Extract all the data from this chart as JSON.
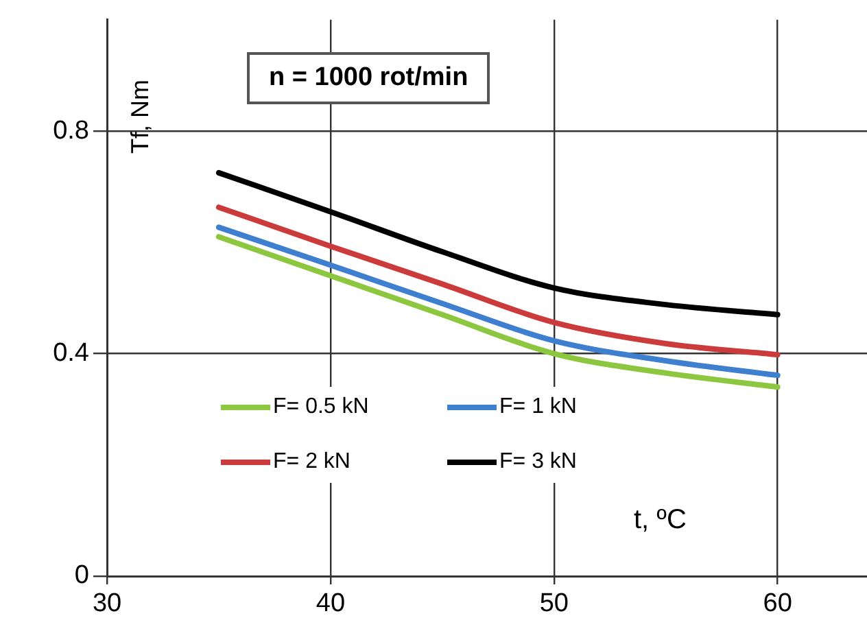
{
  "chart_data": {
    "type": "line",
    "title": "n = 1000 rot/min",
    "xlabel": "t, ºC",
    "ylabel": "Tf, Nm",
    "x": [
      35,
      40,
      45,
      50,
      55,
      60
    ],
    "series": [
      {
        "name": "F= 0.5 kN",
        "color": "#8dc63f",
        "values": [
          0.61,
          0.54,
          0.47,
          0.4,
          0.365,
          0.34
        ]
      },
      {
        "name": "F= 1 kN",
        "color": "#3f7fd0",
        "values": [
          0.627,
          0.559,
          0.49,
          0.423,
          0.387,
          0.361
        ]
      },
      {
        "name": "F= 2 kN",
        "color": "#cc3b3b",
        "values": [
          0.663,
          0.593,
          0.525,
          0.456,
          0.418,
          0.398
        ]
      },
      {
        "name": "F= 3 kN",
        "color": "#000000",
        "values": [
          0.725,
          0.655,
          0.583,
          0.518,
          0.488,
          0.47
        ]
      }
    ],
    "xlim": [
      30,
      64
    ],
    "xticks": [
      30,
      40,
      50,
      60
    ],
    "ylim": [
      0,
      1
    ],
    "yticks": [
      0,
      0.4,
      0.8
    ],
    "grid": true,
    "legend": "bottom left",
    "marker": "none",
    "line_style": "solid"
  }
}
